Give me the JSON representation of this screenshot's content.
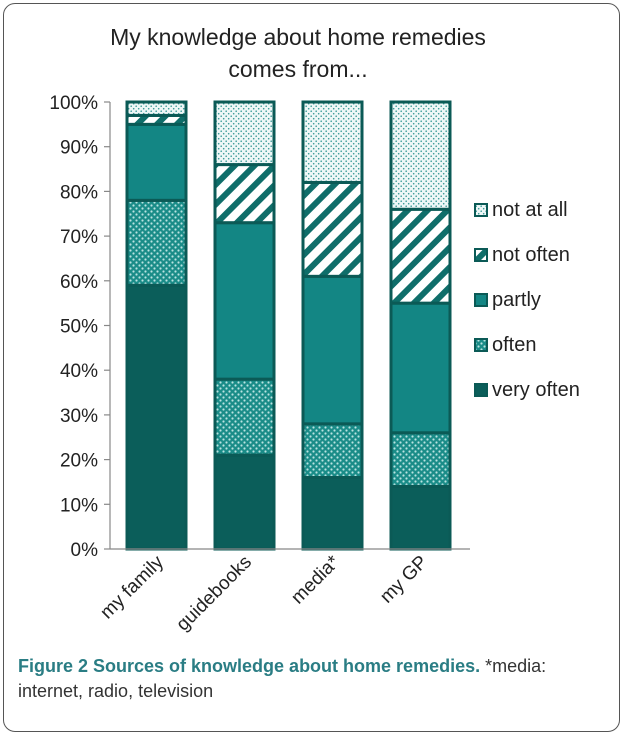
{
  "chart_data": {
    "type": "bar",
    "stacked": true,
    "title": "My knowledge about home remedies comes from...",
    "title_lines": [
      "My knowledge about home remedies",
      "comes from..."
    ],
    "categories": [
      "my family",
      "guidebooks",
      "media*",
      "my GP"
    ],
    "ylim": [
      0,
      100
    ],
    "yticks": [
      "0%",
      "10%",
      "20%",
      "30%",
      "40%",
      "50%",
      "60%",
      "70%",
      "80%",
      "90%",
      "100%"
    ],
    "legend_position": "right",
    "series": [
      {
        "name": "very often",
        "values": [
          59,
          21,
          16,
          14
        ],
        "color": "#0b5e5a"
      },
      {
        "name": "often",
        "values": [
          19,
          17,
          12,
          12
        ],
        "color": "#1a8c88"
      },
      {
        "name": "partly",
        "values": [
          17,
          35,
          33,
          29
        ],
        "color": "#138684"
      },
      {
        "name": "not often",
        "values": [
          2,
          13,
          21,
          21
        ],
        "color": "#ffffff"
      },
      {
        "name": "not at all",
        "values": [
          3,
          14,
          18,
          24
        ],
        "color": "#eef7f7"
      }
    ]
  },
  "caption": {
    "label": "Figure 2 Sources of knowledge about home remedies.",
    "text": " *media: internet, radio, television"
  }
}
